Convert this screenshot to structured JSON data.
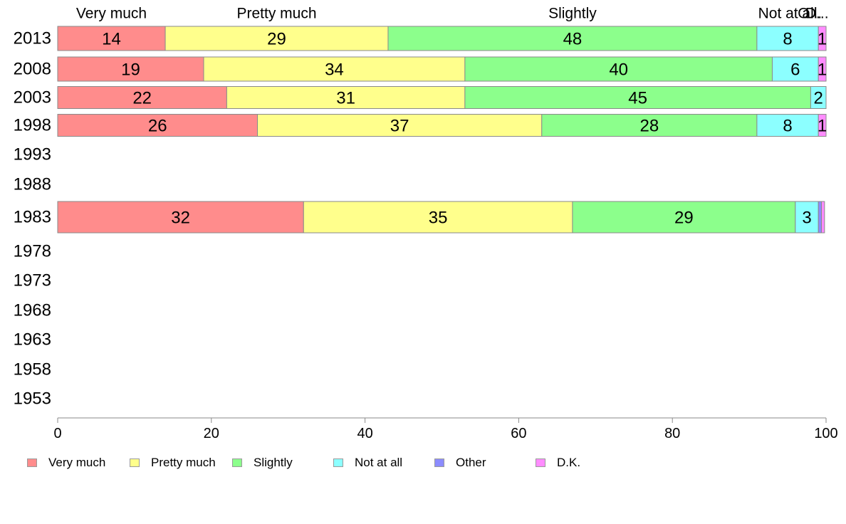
{
  "chart_data": {
    "type": "bar",
    "orientation": "horizontal",
    "stacked": true,
    "categories": [
      "2013",
      "2008",
      "2003",
      "1998",
      "1993",
      "1988",
      "1983",
      "1978",
      "1973",
      "1968",
      "1963",
      "1958",
      "1953"
    ],
    "series": [
      {
        "name": "Very much",
        "color": "#ff8c8c",
        "values": [
          14,
          19,
          22,
          26,
          null,
          null,
          32,
          null,
          null,
          null,
          null,
          null,
          null
        ]
      },
      {
        "name": "Pretty much",
        "color": "#ffff8c",
        "values": [
          29,
          34,
          31,
          37,
          null,
          null,
          35,
          null,
          null,
          null,
          null,
          null,
          null
        ]
      },
      {
        "name": "Slightly",
        "color": "#8cff8c",
        "values": [
          48,
          40,
          45,
          28,
          null,
          null,
          29,
          null,
          null,
          null,
          null,
          null,
          null
        ]
      },
      {
        "name": "Not at all",
        "color": "#8cffff",
        "values": [
          8,
          6,
          2,
          8,
          null,
          null,
          3,
          null,
          null,
          null,
          null,
          null,
          null
        ]
      },
      {
        "name": "Other",
        "color": "#8c8cff",
        "values": [
          0,
          0,
          0,
          0,
          null,
          null,
          0.4,
          null,
          null,
          null,
          null,
          null,
          null
        ]
      },
      {
        "name": "D.K.",
        "color": "#ff8cff",
        "values": [
          1,
          1,
          0,
          1,
          null,
          null,
          0.4,
          null,
          null,
          null,
          null,
          null,
          null
        ]
      }
    ],
    "top_labels": [
      "Very much",
      "Pretty much",
      "Slightly",
      "Not at all",
      "O...",
      "D..."
    ],
    "xlim": [
      0,
      100
    ],
    "xticks": [
      0,
      20,
      40,
      60,
      80,
      100
    ],
    "grid": false,
    "legend_position": "bottom"
  }
}
